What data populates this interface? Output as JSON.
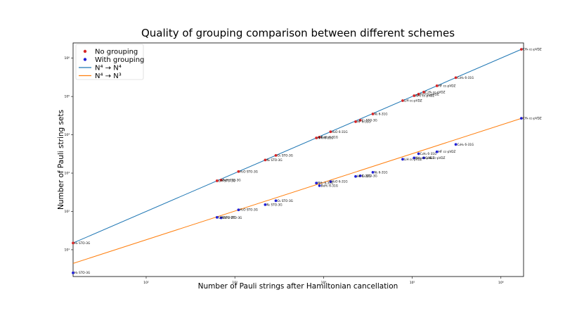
{
  "chart_data": {
    "type": "scatter",
    "title": "Quality of grouping comparison between different schemes",
    "xlabel": "Number of Pauli strings after Hamiltonian cancellation",
    "ylabel": "Number of Pauli string sets",
    "xscale": "log",
    "yscale": "log",
    "xlim": [
      15,
      1800000
    ],
    "ylim": [
      2,
      2500000
    ],
    "x_ticks": [
      {
        "value": 100,
        "label": "10²"
      },
      {
        "value": 1000,
        "label": "10³"
      },
      {
        "value": 10000,
        "label": "10⁴"
      },
      {
        "value": 100000,
        "label": "10⁵"
      },
      {
        "value": 1000000,
        "label": "10⁶"
      }
    ],
    "y_ticks": [
      {
        "value": 10,
        "label": "10¹"
      },
      {
        "value": 100,
        "label": "10²"
      },
      {
        "value": 1000,
        "label": "10³"
      },
      {
        "value": 10000,
        "label": "10⁴"
      },
      {
        "value": 100000,
        "label": "10⁵"
      },
      {
        "value": 1000000,
        "label": "10⁶"
      }
    ],
    "legend": {
      "placement": "top-left"
    },
    "series": [
      {
        "name": "No grouping",
        "kind": "scatter",
        "color": "#d62728",
        "points": [
          {
            "x": 15,
            "y": 15,
            "label": "H₂ STO-3G"
          },
          {
            "x": 630,
            "y": 630,
            "label": "LiH STO-3G"
          },
          {
            "x": 700,
            "y": 660,
            "label": "BeH STO-3G"
          },
          {
            "x": 1100,
            "y": 1100,
            "label": "H₂O STO-3G"
          },
          {
            "x": 2200,
            "y": 2200,
            "label": "N₂ STO-3G"
          },
          {
            "x": 2900,
            "y": 2900,
            "label": "O₂ STO-3G"
          },
          {
            "x": 8300,
            "y": 8300,
            "label": "NH₃ 6-31G"
          },
          {
            "x": 9000,
            "y": 8700,
            "label": "BeH₂ 6-31G"
          },
          {
            "x": 12000,
            "y": 12000,
            "label": "H₂O 6-31G"
          },
          {
            "x": 23000,
            "y": 22000,
            "label": "HF 6-31G"
          },
          {
            "x": 26000,
            "y": 24000,
            "label": "C₂ STO-3G"
          },
          {
            "x": 36000,
            "y": 35000,
            "label": "N₂ 6-31G"
          },
          {
            "x": 78000,
            "y": 78000,
            "label": "LiH cc-pVDZ"
          },
          {
            "x": 105000,
            "y": 105000,
            "label": "NH₃ cc-pVDZ"
          },
          {
            "x": 118000,
            "y": 115000,
            "label": "H₂O cc-pVDZ"
          },
          {
            "x": 135000,
            "y": 130000,
            "label": "C₂H₄ cc-pVDZ"
          },
          {
            "x": 190000,
            "y": 190000,
            "label": "HF cc-pVDZ"
          },
          {
            "x": 310000,
            "y": 310000,
            "label": "C₂H₆ 6-31G"
          },
          {
            "x": 1700000,
            "y": 1700000,
            "label": "CH₄ cc-pVDZ"
          }
        ]
      },
      {
        "name": "With grouping",
        "kind": "scatter",
        "color": "#1f1fd6",
        "points": [
          {
            "x": 15,
            "y": 2.5,
            "label": "H₂ STO-3G"
          },
          {
            "x": 630,
            "y": 70,
            "label": "LiH STO-3G"
          },
          {
            "x": 700,
            "y": 68,
            "label": "BeH₂ STO-3G"
          },
          {
            "x": 1100,
            "y": 110,
            "label": "H₂O STO-3G"
          },
          {
            "x": 2200,
            "y": 150,
            "label": "N₂ STO-3G"
          },
          {
            "x": 2900,
            "y": 190,
            "label": "O₂ STO-3G"
          },
          {
            "x": 8300,
            "y": 550,
            "label": "NH₃ 6-31G"
          },
          {
            "x": 9000,
            "y": 470,
            "label": "BeH₂ 6-31G"
          },
          {
            "x": 12000,
            "y": 600,
            "label": "H₂O 6-31G"
          },
          {
            "x": 23000,
            "y": 820,
            "label": "HF 6-31G"
          },
          {
            "x": 26000,
            "y": 850,
            "label": "C₂ STO-3G"
          },
          {
            "x": 36000,
            "y": 1050,
            "label": "N₂ 6-31G"
          },
          {
            "x": 78000,
            "y": 2300,
            "label": "LiH cc-pVDZ"
          },
          {
            "x": 105000,
            "y": 2500,
            "label": "NH₃ cc-pVDZ"
          },
          {
            "x": 118000,
            "y": 3200,
            "label": "C₂H₄ 6-31G"
          },
          {
            "x": 135000,
            "y": 2500,
            "label": "C₂H₄ cc-pVDZ"
          },
          {
            "x": 190000,
            "y": 3600,
            "label": "HF cc-pVDZ"
          },
          {
            "x": 310000,
            "y": 5600,
            "label": "C₂H₆ 6-31G"
          },
          {
            "x": 1700000,
            "y": 27000,
            "label": "CH₄ cc-pVDZ"
          }
        ]
      },
      {
        "name": "N⁴ → N⁴",
        "kind": "line",
        "color": "#1f77b4",
        "points": [
          {
            "x": 15,
            "y": 15
          },
          {
            "x": 1800000,
            "y": 1800000
          }
        ]
      },
      {
        "name": "N⁴ → N³",
        "kind": "line",
        "color": "#ff7f0e",
        "points": [
          {
            "x": 15,
            "y": 4.4
          },
          {
            "x": 1800000,
            "y": 28000
          }
        ]
      }
    ]
  }
}
